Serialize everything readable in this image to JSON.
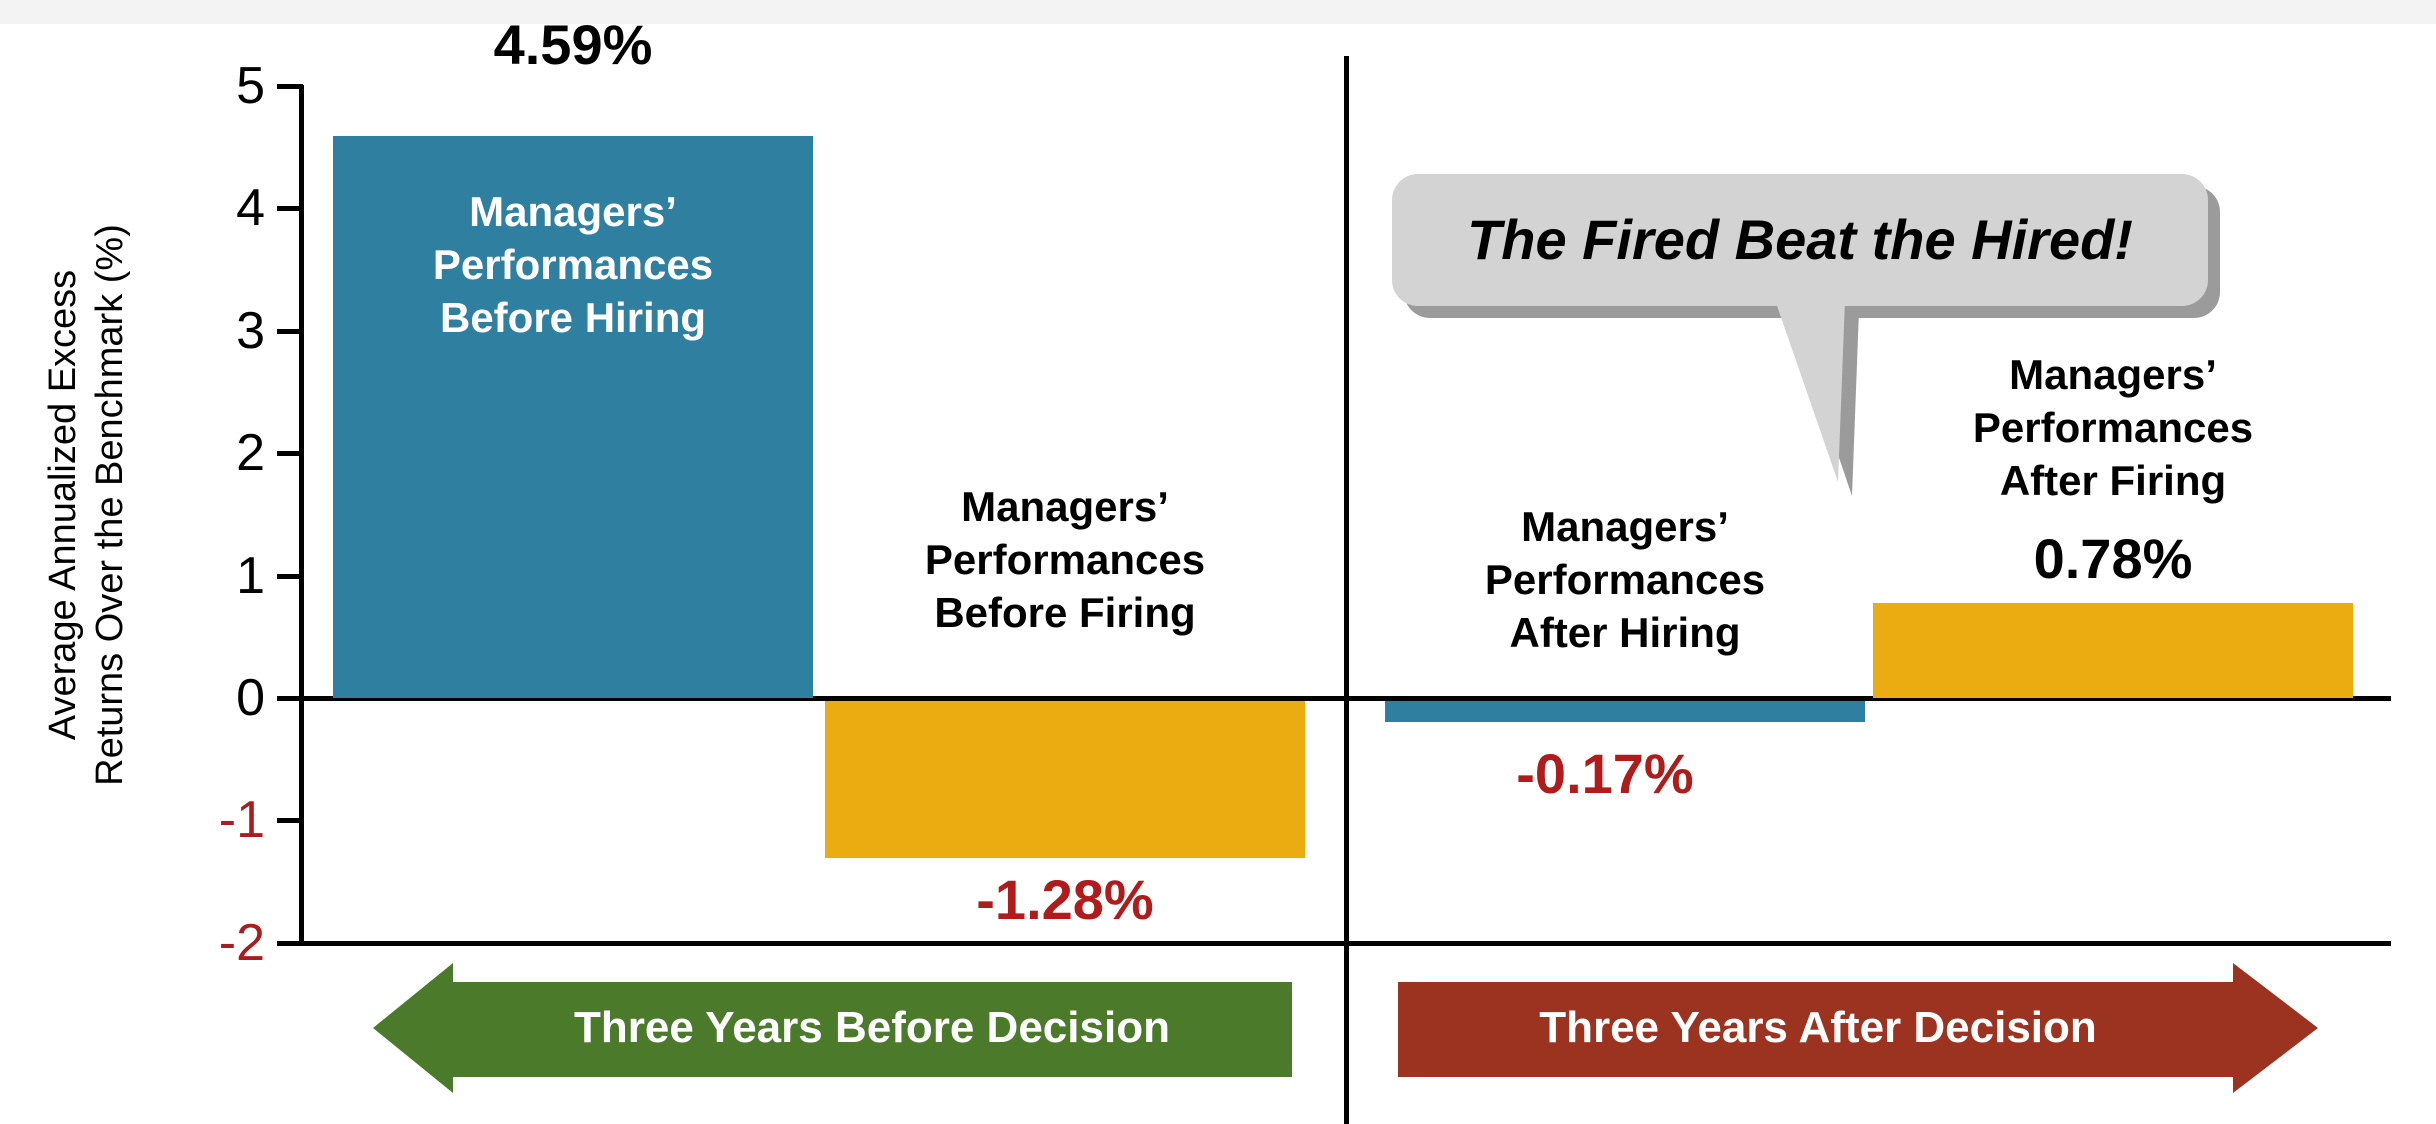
{
  "chart_data": {
    "type": "bar",
    "title": "",
    "ylabel_lines": [
      "Average Annualized Excess",
      "Returns Over the Benchmark (%)"
    ],
    "ylim": [
      -2,
      5
    ],
    "yticks": [
      5,
      4,
      3,
      2,
      1,
      0,
      -1,
      -2
    ],
    "grid": "off",
    "legend": "none",
    "categories": [
      "Managers’ Performances Before Hiring",
      "Managers’ Performances Before Firing",
      "Managers’ Performances After Hiring",
      "Managers’ Performances After Firing"
    ],
    "series": [
      {
        "name": "Average annualized excess return (%)",
        "values": [
          4.59,
          -1.28,
          -0.17,
          0.78
        ]
      }
    ],
    "bars": [
      {
        "label": "Managers’\nPerformances\nBefore Hiring",
        "value": 4.59,
        "display_value": "4.59%",
        "color": "#2f7fa0",
        "label_color": "#ffffff",
        "value_color": "#000000"
      },
      {
        "label": "Managers’\nPerformances\nBefore Firing",
        "value": -1.28,
        "display_value": "-1.28%",
        "color": "#eaac11",
        "label_color": "#000000",
        "value_color": "#b01b1b"
      },
      {
        "label": "Managers’\nPerformances\nAfter Hiring",
        "value": -0.17,
        "display_value": "-0.17%",
        "color": "#2f7fa0",
        "label_color": "#000000",
        "value_color": "#b01b1b"
      },
      {
        "label": "Managers’\nPerformances\nAfter Firing",
        "value": 0.78,
        "display_value": "0.78%",
        "color": "#eaac11",
        "label_color": "#000000",
        "value_color": "#000000"
      }
    ],
    "negative_tick_color": "#a81e1e",
    "axis_color": "#000000"
  },
  "annotations": {
    "callout_text": "The Fired Beat the Hired!",
    "callout_bg": "#d3d3d3",
    "callout_shadow": "#9b9b9b"
  },
  "sections": [
    {
      "label": "Three Years Before Decision",
      "color": "#4c7a2b",
      "direction": "left",
      "text_color": "#ffffff"
    },
    {
      "label": "Three Years After Decision",
      "color": "#9c3320",
      "direction": "right",
      "text_color": "#ffffff"
    }
  ]
}
